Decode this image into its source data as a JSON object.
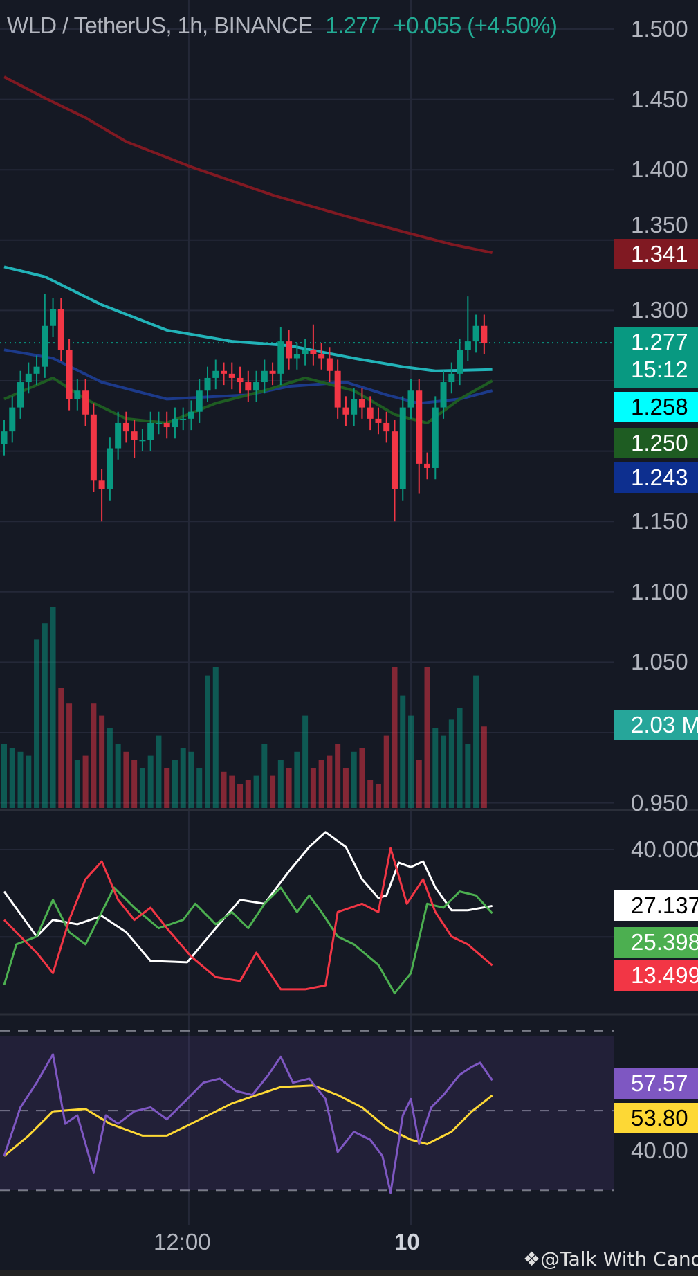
{
  "header": {
    "symbol": "WLD / TetherUS, 1h, BINANCE",
    "last": "1.277",
    "change": "+0.055 (+4.50%)"
  },
  "colors": {
    "bg": "#151924",
    "up": "#089981",
    "down": "#f23645",
    "ma_red": "#801922",
    "ma_cyan": "#22b3b8",
    "ma_navy": "#1c3a8a",
    "ma_green": "#1e5c22",
    "adx": "#ffffff",
    "plus_di": "#4caf50",
    "minus_di": "#f23645",
    "rsi": "#7e57c2",
    "rsi_ma": "#fdd835"
  },
  "price_axis": [
    "1.500",
    "1.450",
    "1.400",
    "1.350",
    "1.300",
    "1.150",
    "1.100",
    "1.050",
    "0.950"
  ],
  "price_tags": [
    {
      "label": "1.341",
      "value": 1.341,
      "bg": "#801922",
      "fg": "#ffffff"
    },
    {
      "label": "1.277",
      "value": 1.277,
      "bg": "#089981",
      "fg": "#ffffff",
      "countdown": "15:12"
    },
    {
      "label": "1.258",
      "value": 1.258,
      "bg": "#00ffff",
      "fg": "#000000"
    },
    {
      "label": "1.250",
      "value": 1.25,
      "bg": "#1e5c22",
      "fg": "#ffffff"
    },
    {
      "label": "1.243",
      "value": 1.243,
      "bg": "#0d2f8f",
      "fg": "#ffffff"
    }
  ],
  "volume_tag": {
    "label": "2.03 M",
    "bg": "#26a69a"
  },
  "dmi_axis": "40.000",
  "dmi_tags": [
    {
      "label": "27.137",
      "bg": "#ffffff",
      "fg": "#000000"
    },
    {
      "label": "25.398",
      "bg": "#4caf50",
      "fg": "#ffffff"
    },
    {
      "label": "13.499",
      "bg": "#f23645",
      "fg": "#ffffff"
    }
  ],
  "rsi_axis": "40.00",
  "rsi_tags": [
    {
      "label": "57.57",
      "bg": "#7e57c2",
      "fg": "#ffffff"
    },
    {
      "label": "53.80",
      "bg": "#fdd835",
      "fg": "#000000"
    }
  ],
  "time_axis": [
    {
      "label": "12:00",
      "bar": 22.7
    },
    {
      "label": "10",
      "bar": 50
    }
  ],
  "watermark": "@Talk With Candle",
  "chart_data": {
    "type": "candlestick",
    "candles": {
      "note_open": "open equals previous close",
      "close": [
        1.214,
        1.231,
        1.249,
        1.255,
        1.26,
        1.289,
        1.301,
        1.272,
        1.237,
        1.243,
        1.226,
        1.179,
        1.173,
        1.202,
        1.22,
        1.214,
        1.208,
        1.208,
        1.22,
        1.22,
        1.217,
        1.223,
        1.223,
        1.228,
        1.243,
        1.252,
        1.257,
        1.255,
        1.252,
        1.249,
        1.243,
        1.249,
        1.257,
        1.255,
        1.278,
        1.266,
        1.269,
        1.272,
        1.269,
        1.266,
        1.257,
        1.231,
        1.226,
        1.237,
        1.231,
        1.223,
        1.22,
        1.214,
        1.173,
        1.231,
        1.243,
        1.191,
        1.188,
        1.231,
        1.249,
        1.255,
        1.272,
        1.278,
        1.289,
        1.277
      ],
      "high": [
        1.222,
        1.239,
        1.257,
        1.263,
        1.268,
        1.312,
        1.309,
        1.309,
        1.28,
        1.251,
        1.251,
        1.234,
        1.187,
        1.21,
        1.228,
        1.228,
        1.222,
        1.216,
        1.228,
        1.228,
        1.228,
        1.231,
        1.231,
        1.236,
        1.251,
        1.26,
        1.265,
        1.263,
        1.263,
        1.26,
        1.257,
        1.257,
        1.265,
        1.263,
        1.288,
        1.286,
        1.277,
        1.28,
        1.29,
        1.277,
        1.274,
        1.265,
        1.239,
        1.245,
        1.245,
        1.239,
        1.231,
        1.228,
        1.222,
        1.239,
        1.251,
        1.251,
        1.199,
        1.239,
        1.257,
        1.263,
        1.28,
        1.31,
        1.297,
        1.297
      ],
      "low": [
        1.197,
        1.206,
        1.223,
        1.241,
        1.247,
        1.252,
        1.281,
        1.264,
        1.229,
        1.229,
        1.218,
        1.171,
        1.15,
        1.165,
        1.194,
        1.206,
        1.195,
        1.2,
        1.2,
        1.212,
        1.209,
        1.209,
        1.215,
        1.215,
        1.22,
        1.235,
        1.244,
        1.247,
        1.244,
        1.241,
        1.235,
        1.235,
        1.241,
        1.247,
        1.247,
        1.258,
        1.258,
        1.261,
        1.261,
        1.258,
        1.249,
        1.223,
        1.218,
        1.218,
        1.223,
        1.215,
        1.212,
        1.206,
        1.15,
        1.165,
        1.223,
        1.17,
        1.18,
        1.18,
        1.223,
        1.241,
        1.247,
        1.264,
        1.27,
        1.269
      ]
    },
    "volume_m": [
      1.6,
      1.5,
      1.4,
      1.3,
      4.2,
      4.6,
      5.0,
      3.0,
      2.6,
      1.2,
      1.3,
      2.6,
      2.3,
      2.0,
      1.6,
      1.4,
      1.2,
      1.0,
      1.3,
      1.8,
      1.0,
      1.2,
      1.5,
      1.4,
      1.0,
      3.3,
      3.5,
      0.9,
      0.8,
      0.6,
      0.7,
      0.8,
      1.6,
      0.8,
      1.2,
      1.0,
      1.4,
      2.3,
      1.0,
      1.2,
      1.3,
      1.6,
      1.0,
      1.4,
      1.5,
      0.7,
      0.6,
      1.8,
      3.5,
      2.8,
      2.3,
      1.2,
      3.5,
      2.0,
      1.8,
      2.2,
      2.5,
      1.6,
      3.3,
      2.03
    ],
    "moving_averages": [
      {
        "color": "ma_red",
        "points": [
          [
            0,
            1.466
          ],
          [
            5,
            1.451
          ],
          [
            10,
            1.437
          ],
          [
            15,
            1.42
          ],
          [
            23,
            1.402
          ],
          [
            33,
            1.382
          ],
          [
            42,
            1.367
          ],
          [
            49,
            1.356
          ],
          [
            55,
            1.347
          ],
          [
            60,
            1.341
          ]
        ]
      },
      {
        "color": "ma_cyan",
        "points": [
          [
            0,
            1.331
          ],
          [
            5,
            1.324
          ],
          [
            12,
            1.304
          ],
          [
            20,
            1.286
          ],
          [
            28,
            1.278
          ],
          [
            35,
            1.275
          ],
          [
            43,
            1.266
          ],
          [
            49,
            1.26
          ],
          [
            53,
            1.257
          ],
          [
            60,
            1.258
          ]
        ]
      },
      {
        "color": "ma_navy",
        "points": [
          [
            0,
            1.272
          ],
          [
            6,
            1.266
          ],
          [
            12,
            1.249
          ],
          [
            20,
            1.237
          ],
          [
            30,
            1.24
          ],
          [
            35,
            1.246
          ],
          [
            42,
            1.249
          ],
          [
            47,
            1.24
          ],
          [
            51,
            1.234
          ],
          [
            56,
            1.237
          ],
          [
            60,
            1.243
          ]
        ]
      },
      {
        "color": "ma_green",
        "points": [
          [
            0,
            1.237
          ],
          [
            6,
            1.252
          ],
          [
            10,
            1.237
          ],
          [
            15,
            1.223
          ],
          [
            20,
            1.22
          ],
          [
            26,
            1.234
          ],
          [
            32,
            1.243
          ],
          [
            37,
            1.252
          ],
          [
            43,
            1.243
          ],
          [
            48,
            1.226
          ],
          [
            52,
            1.22
          ],
          [
            56,
            1.237
          ],
          [
            60,
            1.25
          ]
        ]
      }
    ],
    "dmi": {
      "adx": [
        [
          0,
          30.4
        ],
        [
          4,
          20.1
        ],
        [
          6,
          23.9
        ],
        [
          9,
          22.9
        ],
        [
          12,
          24.8
        ],
        [
          15,
          21.1
        ],
        [
          18,
          14.5
        ],
        [
          22.5,
          14.2
        ],
        [
          26,
          22.0
        ],
        [
          29,
          28.5
        ],
        [
          32,
          27.6
        ],
        [
          35,
          35.0
        ],
        [
          37.5,
          40.6
        ],
        [
          39.5,
          44.0
        ],
        [
          42,
          40.6
        ],
        [
          44,
          33.2
        ],
        [
          46,
          28.9
        ],
        [
          47,
          29.5
        ],
        [
          48.5,
          37.0
        ],
        [
          50,
          36.0
        ],
        [
          51.5,
          37.3
        ],
        [
          53,
          31.3
        ],
        [
          55,
          26.1
        ],
        [
          57,
          26.1
        ],
        [
          60,
          27.1
        ]
      ],
      "plus_di": [
        [
          0,
          9.0
        ],
        [
          1.5,
          18.3
        ],
        [
          4,
          20.1
        ],
        [
          6,
          28.5
        ],
        [
          8,
          21.1
        ],
        [
          10,
          18.3
        ],
        [
          12,
          25.7
        ],
        [
          13.5,
          31.3
        ],
        [
          16,
          26.7
        ],
        [
          19,
          22.0
        ],
        [
          22,
          23.9
        ],
        [
          23.5,
          27.6
        ],
        [
          26,
          22.9
        ],
        [
          28,
          25.7
        ],
        [
          30,
          22.0
        ],
        [
          32,
          27.6
        ],
        [
          34,
          31.3
        ],
        [
          36,
          25.7
        ],
        [
          37.5,
          29.5
        ],
        [
          39,
          25.7
        ],
        [
          41,
          20.1
        ],
        [
          43,
          18.3
        ],
        [
          46,
          13.6
        ],
        [
          48,
          7.1
        ],
        [
          50,
          11.7
        ],
        [
          52,
          27.6
        ],
        [
          54,
          26.7
        ],
        [
          56,
          30.4
        ],
        [
          58,
          29.5
        ],
        [
          60,
          25.4
        ]
      ],
      "minus_di": [
        [
          0,
          23.9
        ],
        [
          2,
          20.1
        ],
        [
          4,
          16.4
        ],
        [
          6,
          11.7
        ],
        [
          8,
          23.9
        ],
        [
          10,
          33.2
        ],
        [
          12,
          37.3
        ],
        [
          14,
          28.5
        ],
        [
          16,
          23.9
        ],
        [
          18,
          26.7
        ],
        [
          20,
          22.0
        ],
        [
          23,
          15.5
        ],
        [
          26,
          10.8
        ],
        [
          29,
          9.9
        ],
        [
          31,
          16.4
        ],
        [
          34,
          8.0
        ],
        [
          37,
          8.0
        ],
        [
          39.5,
          8.9
        ],
        [
          41,
          25.7
        ],
        [
          44,
          27.6
        ],
        [
          46,
          25.7
        ],
        [
          47.5,
          40.3
        ],
        [
          49.5,
          27.6
        ],
        [
          51.5,
          33.2
        ],
        [
          53,
          25.7
        ],
        [
          55,
          20.1
        ],
        [
          57,
          18.3
        ],
        [
          60,
          13.5
        ]
      ]
    },
    "rsi": {
      "rsi": [
        [
          0,
          38.6
        ],
        [
          2,
          50.8
        ],
        [
          4,
          57.0
        ],
        [
          6,
          64.1
        ],
        [
          7.5,
          46.7
        ],
        [
          9,
          48.8
        ],
        [
          11,
          34.5
        ],
        [
          12.5,
          48.8
        ],
        [
          14,
          46.7
        ],
        [
          16,
          49.8
        ],
        [
          18,
          50.8
        ],
        [
          20,
          47.8
        ],
        [
          23,
          53.9
        ],
        [
          24.5,
          57.0
        ],
        [
          26.5,
          58.0
        ],
        [
          28.5,
          54.9
        ],
        [
          30.5,
          53.9
        ],
        [
          32.5,
          59.0
        ],
        [
          34,
          63.5
        ],
        [
          35.5,
          57.0
        ],
        [
          37.5,
          58.0
        ],
        [
          39.5,
          52.9
        ],
        [
          41,
          39.6
        ],
        [
          43,
          44.7
        ],
        [
          45,
          42.7
        ],
        [
          46.5,
          38.6
        ],
        [
          47.5,
          29.4
        ],
        [
          49,
          48.8
        ],
        [
          50,
          52.9
        ],
        [
          51,
          41.6
        ],
        [
          52.5,
          50.8
        ],
        [
          54,
          53.9
        ],
        [
          56,
          59.0
        ],
        [
          57.5,
          61.0
        ],
        [
          58.5,
          62.0
        ],
        [
          60,
          57.6
        ]
      ],
      "rsi_ma": [
        [
          0,
          38.6
        ],
        [
          3,
          43.7
        ],
        [
          6,
          49.8
        ],
        [
          10,
          50.4
        ],
        [
          13,
          46.7
        ],
        [
          17,
          43.7
        ],
        [
          20,
          43.7
        ],
        [
          23,
          46.7
        ],
        [
          28,
          51.8
        ],
        [
          34,
          55.9
        ],
        [
          38,
          56.3
        ],
        [
          41,
          53.9
        ],
        [
          44,
          50.8
        ],
        [
          47,
          45.7
        ],
        [
          50,
          42.7
        ],
        [
          52,
          41.6
        ],
        [
          55,
          44.7
        ],
        [
          57.5,
          49.8
        ],
        [
          60,
          53.8
        ]
      ]
    }
  }
}
